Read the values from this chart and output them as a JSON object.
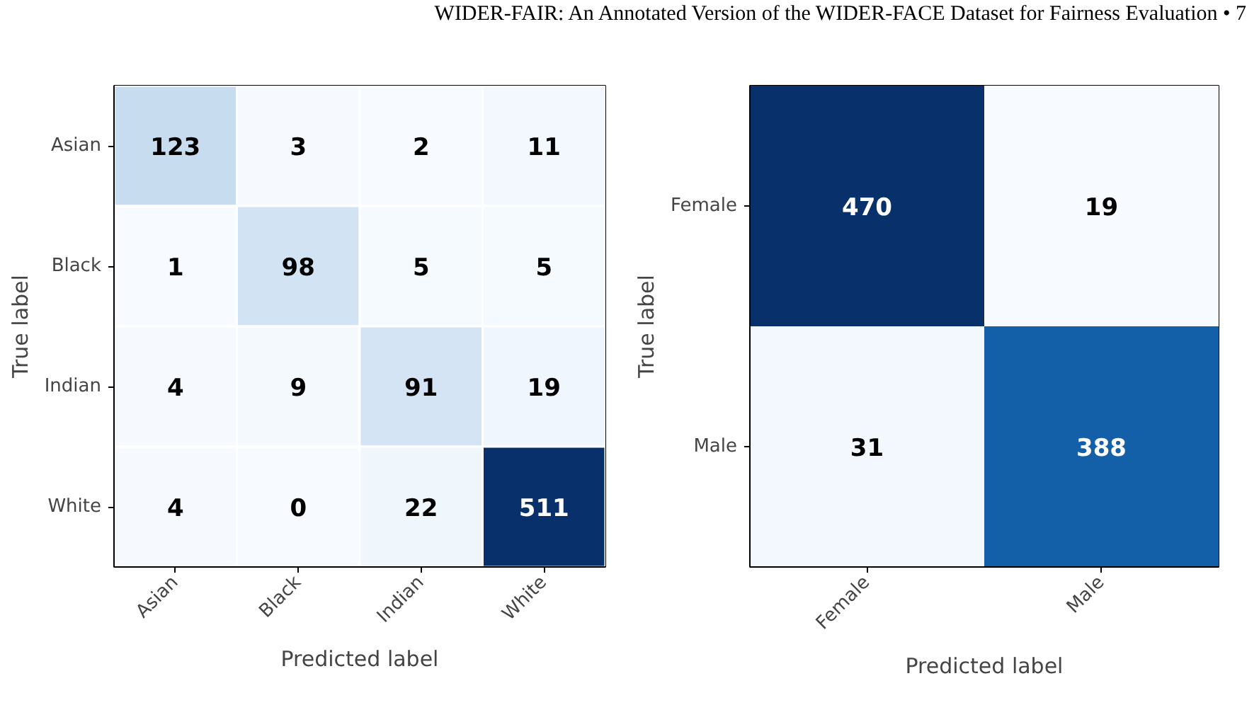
{
  "chart_data": [
    {
      "type": "heatmap",
      "annotations": [
        "WIDER-FAIR: An Annotated Version of the WIDER-FACE Dataset for Fairness Evaluation  •  7"
      ],
      "xlabel": "Predicted label",
      "ylabel": "True label",
      "categories": [
        "Asian",
        "Black",
        "Indian",
        "White"
      ],
      "y_categories": [
        "Asian",
        "Black",
        "Indian",
        "White"
      ],
      "data_labels": true,
      "cells": [
        [
          123,
          3,
          2,
          11
        ],
        [
          1,
          98,
          5,
          5
        ],
        [
          4,
          9,
          91,
          19
        ],
        [
          4,
          0,
          22,
          511
        ]
      ]
    },
    {
      "type": "heatmap",
      "xlabel": "Predicted label",
      "ylabel": "True label",
      "categories": [
        "Female",
        "Male"
      ],
      "y_categories": [
        "Female",
        "Male"
      ],
      "data_labels": true,
      "cells": [
        [
          470,
          19
        ],
        [
          31,
          388
        ]
      ]
    }
  ]
}
